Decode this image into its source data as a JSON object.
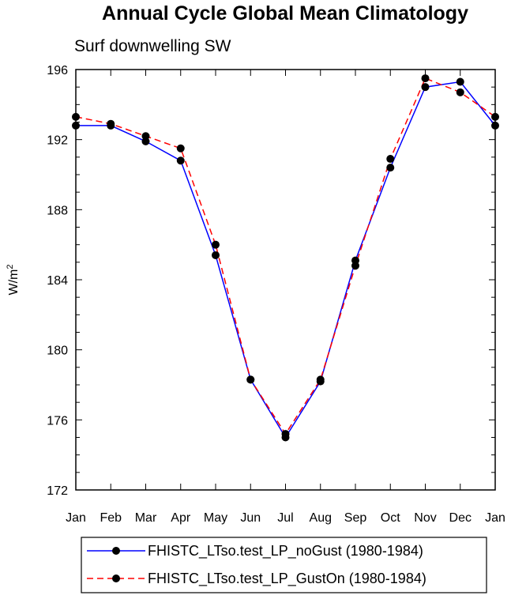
{
  "chart_data": {
    "type": "line",
    "title": "Annual Cycle Global Mean Climatology",
    "subtitle": "Surf downwelling SW",
    "xlabel": "",
    "ylabel": "W/m",
    "ylabel_sup": "2",
    "categories": [
      "Jan",
      "Feb",
      "Mar",
      "Apr",
      "May",
      "Jun",
      "Jul",
      "Aug",
      "Sep",
      "Oct",
      "Nov",
      "Dec",
      "Jan"
    ],
    "ylim": [
      172,
      196
    ],
    "yticks": [
      172,
      176,
      180,
      184,
      188,
      192,
      196
    ],
    "grid": false,
    "legend_position": "bottom",
    "series": [
      {
        "name": "FHISTC_LTso.test_LP_noGust (1980-1984)",
        "color": "#0000ff",
        "dash": "solid",
        "values": [
          192.8,
          192.8,
          191.9,
          190.8,
          185.4,
          178.3,
          175.0,
          178.2,
          185.1,
          190.4,
          195.0,
          195.3,
          192.8
        ]
      },
      {
        "name": "FHISTC_LTso.test_LP_GustOn (1980-1984)",
        "color": "#ff0000",
        "dash": "dashed",
        "values": [
          193.3,
          192.9,
          192.2,
          191.5,
          186.0,
          178.3,
          175.2,
          178.3,
          184.8,
          190.9,
          195.5,
          194.7,
          193.3
        ]
      }
    ]
  }
}
